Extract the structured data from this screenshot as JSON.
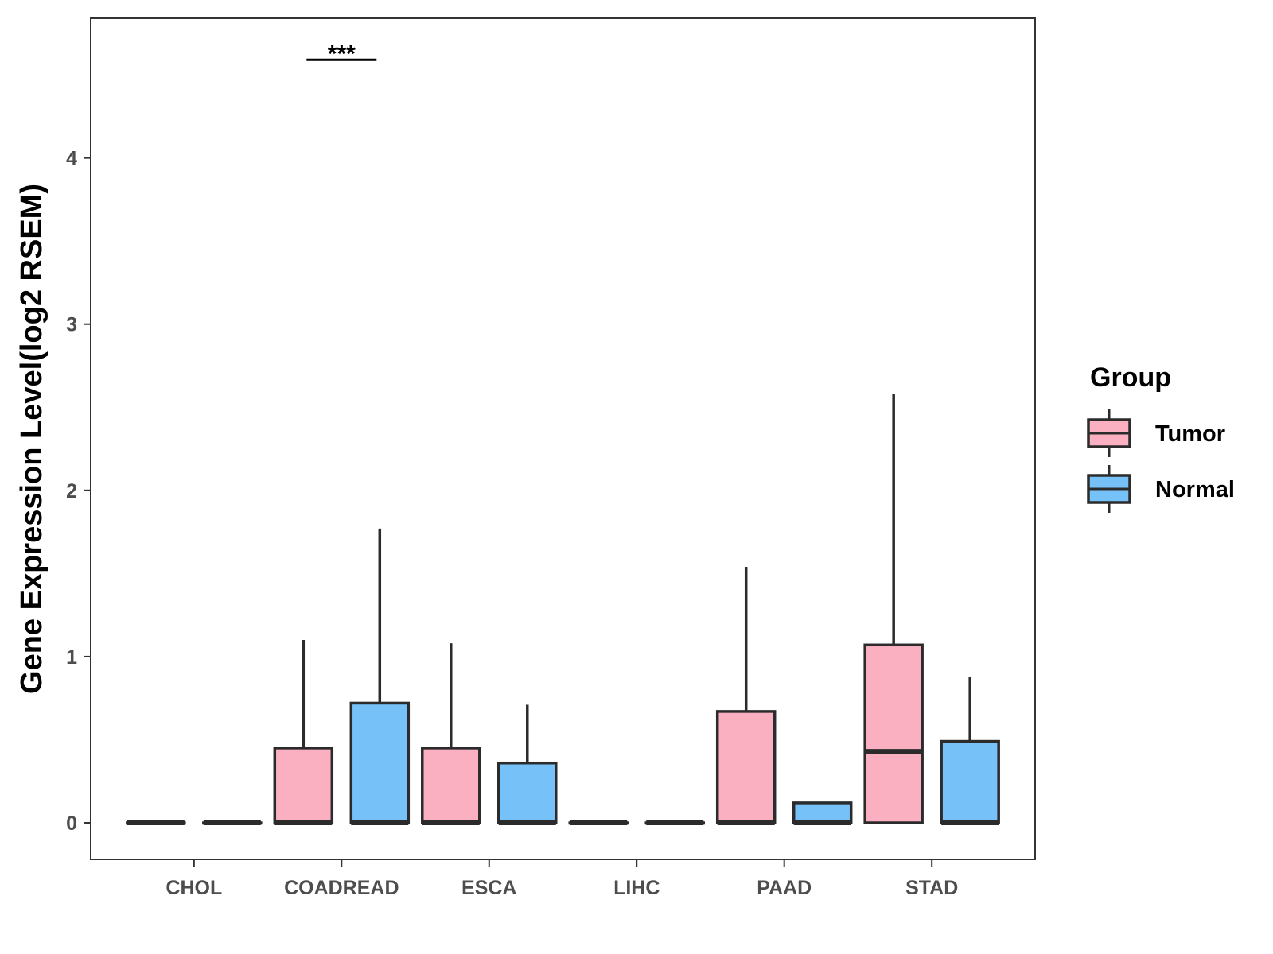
{
  "chart_data": {
    "type": "boxplot",
    "title": "",
    "xlabel": "",
    "ylabel": "Gene Expression Level(log2 RSEM)",
    "ylim": [
      -0.22,
      4.84
    ],
    "yticks": [
      0,
      1,
      2,
      3,
      4
    ],
    "grid": false,
    "categories": [
      "CHOL",
      "COADREAD",
      "ESCA",
      "LIHC",
      "PAAD",
      "STAD"
    ],
    "legend": {
      "title": "Group",
      "position": "right",
      "entries": [
        {
          "name": "Tumor",
          "color": "#FBB0C1"
        },
        {
          "name": "Normal",
          "color": "#75C1F8"
        }
      ]
    },
    "series": [
      {
        "name": "Tumor",
        "color": "#FBB0C1",
        "boxes": [
          {
            "category": "CHOL",
            "min": 0,
            "q1": 0,
            "median": 0,
            "q3": 0,
            "max": 0
          },
          {
            "category": "COADREAD",
            "min": 0,
            "q1": 0,
            "median": 0,
            "q3": 0.45,
            "max": 1.1
          },
          {
            "category": "ESCA",
            "min": 0,
            "q1": 0,
            "median": 0,
            "q3": 0.45,
            "max": 1.08
          },
          {
            "category": "LIHC",
            "min": 0,
            "q1": 0,
            "median": 0,
            "q3": 0,
            "max": 0
          },
          {
            "category": "PAAD",
            "min": 0,
            "q1": 0,
            "median": 0,
            "q3": 0.67,
            "max": 1.54
          },
          {
            "category": "STAD",
            "min": 0,
            "q1": 0,
            "median": 0.43,
            "q3": 1.07,
            "max": 2.58
          }
        ]
      },
      {
        "name": "Normal",
        "color": "#75C1F8",
        "boxes": [
          {
            "category": "CHOL",
            "min": 0,
            "q1": 0,
            "median": 0,
            "q3": 0,
            "max": 0
          },
          {
            "category": "COADREAD",
            "min": 0,
            "q1": 0,
            "median": 0,
            "q3": 0.72,
            "max": 1.77
          },
          {
            "category": "ESCA",
            "min": 0,
            "q1": 0,
            "median": 0,
            "q3": 0.36,
            "max": 0.71
          },
          {
            "category": "LIHC",
            "min": 0,
            "q1": 0,
            "median": 0,
            "q3": 0,
            "max": 0
          },
          {
            "category": "PAAD",
            "min": 0,
            "q1": 0,
            "median": 0,
            "q3": 0.12,
            "max": 0.12
          },
          {
            "category": "STAD",
            "min": 0,
            "q1": 0,
            "median": 0,
            "q3": 0.49,
            "max": 0.88
          }
        ]
      }
    ],
    "annotations": [
      {
        "category": "COADREAD",
        "text": "***",
        "y": 4.59
      }
    ]
  }
}
